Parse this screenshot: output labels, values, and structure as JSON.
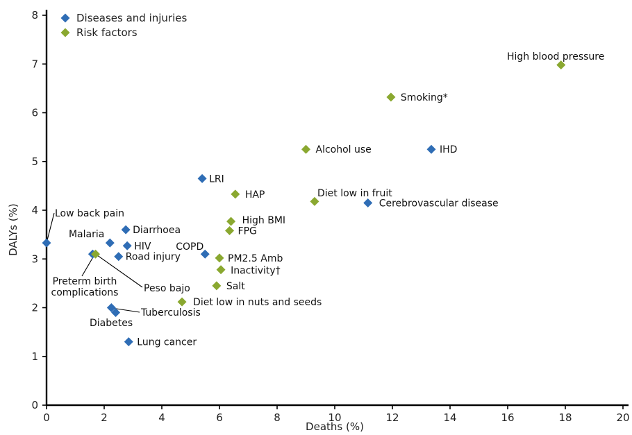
{
  "chart_data": {
    "type": "scatter",
    "xlabel": "Deaths (%)",
    "ylabel": "DALYs (%)",
    "xlim": [
      0,
      20
    ],
    "ylim": [
      0,
      8
    ],
    "x_ticks": [
      "0",
      "2",
      "4",
      "6",
      "8",
      "10",
      "12",
      "14",
      "16",
      "18",
      "20"
    ],
    "y_ticks": [
      "0",
      "1",
      "2",
      "3",
      "4",
      "5",
      "6",
      "7",
      "8"
    ],
    "grid": false,
    "legend_position": "top-left",
    "series": [
      {
        "name": "Diseases and injuries",
        "color": "#2f6db5",
        "points": [
          {
            "label": "Low back pain",
            "x": 0.0,
            "y": 3.33
          },
          {
            "label": "Malaria",
            "x": 2.2,
            "y": 3.33
          },
          {
            "label": "Diarrhoea",
            "x": 2.75,
            "y": 3.6
          },
          {
            "label": "HIV",
            "x": 2.8,
            "y": 3.27
          },
          {
            "label": "Road injury",
            "x": 2.5,
            "y": 3.05
          },
          {
            "label": "Preterm birth complications",
            "x": 1.6,
            "y": 3.1
          },
          {
            "label": "COPD",
            "x": 5.5,
            "y": 3.1
          },
          {
            "label": "LRI",
            "x": 5.4,
            "y": 4.65
          },
          {
            "label": "Tuberculosis",
            "x": 2.25,
            "y": 2.0
          },
          {
            "label": "Diabetes",
            "x": 2.4,
            "y": 1.9
          },
          {
            "label": "Lung cancer",
            "x": 2.85,
            "y": 1.3
          },
          {
            "label": "IHD",
            "x": 13.35,
            "y": 5.25
          },
          {
            "label": "Cerebrovascular disease",
            "x": 11.15,
            "y": 4.15
          }
        ]
      },
      {
        "name": "Risk factors",
        "color": "#8aa830",
        "points": [
          {
            "label": "Peso bajo",
            "x": 1.7,
            "y": 3.1
          },
          {
            "label": "Diet low in nuts and seeds",
            "x": 4.7,
            "y": 2.12
          },
          {
            "label": "Salt",
            "x": 5.9,
            "y": 2.45
          },
          {
            "label": "Inactivity†",
            "x": 6.05,
            "y": 2.78
          },
          {
            "label": "PM2.5 Amb",
            "x": 6.0,
            "y": 3.02
          },
          {
            "label": "FPG",
            "x": 6.35,
            "y": 3.58
          },
          {
            "label": "High BMI",
            "x": 6.4,
            "y": 3.77
          },
          {
            "label": "HAP",
            "x": 6.55,
            "y": 4.33
          },
          {
            "label": "Alcohol use",
            "x": 9.0,
            "y": 5.25
          },
          {
            "label": "Diet low in fruit",
            "x": 9.3,
            "y": 4.18
          },
          {
            "label": "Smoking*",
            "x": 11.95,
            "y": 6.32
          },
          {
            "label": "High blood pressure",
            "x": 17.85,
            "y": 6.98
          }
        ]
      }
    ]
  }
}
